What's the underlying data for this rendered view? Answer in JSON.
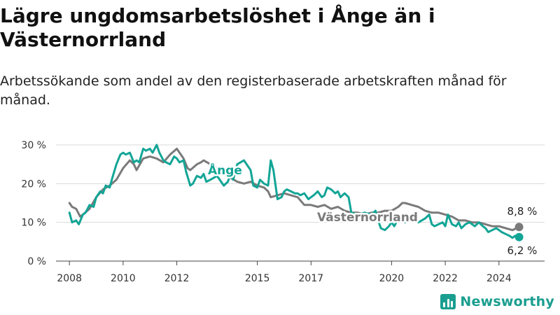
{
  "title": "Lägre ungdomsarbetslöshet i Ånge än i Västernorrland",
  "subtitle": "Arbetssökande som andel av den registerbaserade arbetskraften månad för månad.",
  "brand": {
    "name": "Newsworthy",
    "icon": "bar-chart-icon",
    "color": "#1a9e8f"
  },
  "colors": {
    "ange": "#12a596",
    "vasternorrland": "#7a7a7a",
    "grid": "#d9d9d9"
  },
  "chart_data": {
    "type": "line",
    "title": "Lägre ungdomsarbetslöshet i Ånge än i Västernorrland",
    "subtitle": "Arbetssökande som andel av den registerbaserade arbetskraften månad för månad.",
    "xlabel": "",
    "ylabel": "",
    "xlim": [
      2007.5,
      2025.7
    ],
    "ylim": [
      0,
      30
    ],
    "yticks": [
      0,
      10,
      20,
      30
    ],
    "ytick_labels": [
      "0 %",
      "10 %",
      "20 %",
      "30 %"
    ],
    "xticks": [
      2008,
      2010,
      2012,
      2015,
      2017,
      2020,
      2022,
      2024
    ],
    "xtick_labels": [
      "2008",
      "2010",
      "2012",
      "2015",
      "2017",
      "2020",
      "2022",
      "2024"
    ],
    "grid": true,
    "unit": "%",
    "series": [
      {
        "name": "Ånge",
        "x": [
          2008.0,
          2008.1,
          2008.25,
          2008.35,
          2008.5,
          2008.6,
          2008.75,
          2008.9,
          2009.0,
          2009.15,
          2009.25,
          2009.35,
          2009.5,
          2009.6,
          2009.75,
          2009.9,
          2010.0,
          2010.1,
          2010.25,
          2010.4,
          2010.5,
          2010.6,
          2010.75,
          2010.85,
          2011.0,
          2011.1,
          2011.25,
          2011.35,
          2011.5,
          2011.6,
          2011.75,
          2011.9,
          2012.0,
          2012.1,
          2012.25,
          2012.35,
          2012.5,
          2012.6,
          2012.75,
          2012.9,
          2013.0,
          2013.1,
          2013.25,
          2013.5,
          2013.75,
          2013.9,
          2014.0,
          2014.1,
          2014.25,
          2014.5,
          2014.75,
          2014.85,
          2015.0,
          2015.1,
          2015.25,
          2015.4,
          2015.5,
          2015.6,
          2015.75,
          2015.9,
          2016.0,
          2016.1,
          2016.25,
          2016.4,
          2016.5,
          2016.6,
          2016.75,
          2016.9,
          2017.0,
          2017.1,
          2017.25,
          2017.4,
          2017.5,
          2017.6,
          2017.75,
          2017.9,
          2018.0,
          2018.1,
          2018.25,
          2018.4,
          2018.5,
          2018.75,
          2019.0,
          2019.25,
          2019.4,
          2019.5,
          2019.6,
          2019.75,
          2019.9,
          2020.0,
          2020.1,
          2020.25,
          2020.5,
          2020.75,
          2021.0,
          2021.25,
          2021.4,
          2021.5,
          2021.6,
          2021.75,
          2021.9,
          2022.0,
          2022.1,
          2022.25,
          2022.4,
          2022.5,
          2022.6,
          2022.75,
          2022.9,
          2023.0,
          2023.1,
          2023.25,
          2023.4,
          2023.5,
          2023.6,
          2023.75,
          2023.9,
          2024.0,
          2024.1,
          2024.25,
          2024.4,
          2024.5,
          2024.6,
          2024.75
        ],
        "values": [
          12.5,
          10.0,
          10.5,
          9.5,
          12.0,
          12.5,
          14.5,
          14.0,
          16.5,
          18.0,
          17.5,
          19.5,
          19.0,
          21.5,
          25.0,
          27.5,
          28.0,
          27.5,
          28.0,
          25.5,
          26.0,
          25.5,
          29.0,
          28.5,
          29.0,
          28.0,
          30.0,
          28.0,
          26.0,
          25.5,
          25.0,
          27.0,
          26.5,
          25.5,
          26.0,
          23.0,
          19.5,
          20.0,
          22.0,
          21.5,
          22.5,
          20.5,
          21.0,
          22.0,
          19.5,
          20.5,
          22.5,
          21.0,
          25.0,
          26.0,
          23.5,
          19.5,
          19.0,
          21.0,
          20.0,
          19.5,
          26.0,
          23.5,
          16.0,
          16.5,
          18.0,
          18.5,
          18.0,
          17.5,
          17.5,
          17.0,
          17.5,
          16.0,
          16.5,
          17.0,
          18.0,
          16.5,
          17.0,
          19.0,
          18.5,
          17.5,
          18.0,
          16.5,
          17.5,
          16.5,
          12.5,
          12.0,
          12.5,
          12.0,
          13.0,
          10.5,
          8.5,
          8.0,
          9.0,
          10.0,
          9.0,
          11.0,
          10.0,
          11.0,
          10.0,
          11.0,
          12.0,
          9.5,
          9.0,
          9.5,
          10.0,
          9.0,
          12.0,
          9.5,
          9.0,
          10.0,
          8.5,
          9.5,
          10.0,
          9.5,
          9.0,
          10.0,
          9.0,
          8.5,
          7.5,
          8.0,
          8.5,
          8.0,
          7.5,
          7.0,
          6.5,
          6.0,
          6.5,
          6.2
        ]
      },
      {
        "name": "Västernorrland",
        "x": [
          2008.0,
          2008.1,
          2008.25,
          2008.4,
          2008.5,
          2008.75,
          2009.0,
          2009.25,
          2009.5,
          2009.75,
          2010.0,
          2010.25,
          2010.4,
          2010.5,
          2010.75,
          2011.0,
          2011.25,
          2011.5,
          2011.75,
          2012.0,
          2012.25,
          2012.4,
          2012.5,
          2012.75,
          2012.9,
          2013.0,
          2013.25,
          2013.5,
          2013.75,
          2014.0,
          2014.25,
          2014.5,
          2014.75,
          2015.0,
          2015.25,
          2015.4,
          2015.5,
          2015.75,
          2016.0,
          2016.25,
          2016.5,
          2016.75,
          2017.0,
          2017.25,
          2017.5,
          2017.75,
          2018.0,
          2018.25,
          2018.5,
          2018.75,
          2019.0,
          2019.25,
          2019.5,
          2019.75,
          2020.0,
          2020.25,
          2020.4,
          2020.5,
          2020.75,
          2021.0,
          2021.25,
          2021.5,
          2021.75,
          2022.0,
          2022.25,
          2022.5,
          2022.75,
          2023.0,
          2023.25,
          2023.5,
          2023.75,
          2024.0,
          2024.25,
          2024.5,
          2024.75
        ],
        "values": [
          15.0,
          14.0,
          13.5,
          11.5,
          12.0,
          13.5,
          16.5,
          18.5,
          19.5,
          21.0,
          24.0,
          26.0,
          25.0,
          23.5,
          26.5,
          27.0,
          26.5,
          25.5,
          27.5,
          29.0,
          26.5,
          24.0,
          23.5,
          25.0,
          25.5,
          26.0,
          25.0,
          24.0,
          23.0,
          21.5,
          20.5,
          20.0,
          20.5,
          19.5,
          19.0,
          18.0,
          16.5,
          17.0,
          17.5,
          17.0,
          16.5,
          14.5,
          14.5,
          14.0,
          14.5,
          13.5,
          14.0,
          13.0,
          12.5,
          12.5,
          12.0,
          12.5,
          12.5,
          13.0,
          13.0,
          14.0,
          15.0,
          15.0,
          14.5,
          14.0,
          13.0,
          12.5,
          12.5,
          12.0,
          11.5,
          10.5,
          10.5,
          10.0,
          10.0,
          9.5,
          9.0,
          9.0,
          8.5,
          8.0,
          8.8
        ]
      }
    ],
    "series_labels": [
      "Ånge",
      "Västernorrland"
    ],
    "end_labels": [
      "8,8 %",
      "6,2 %"
    ]
  }
}
